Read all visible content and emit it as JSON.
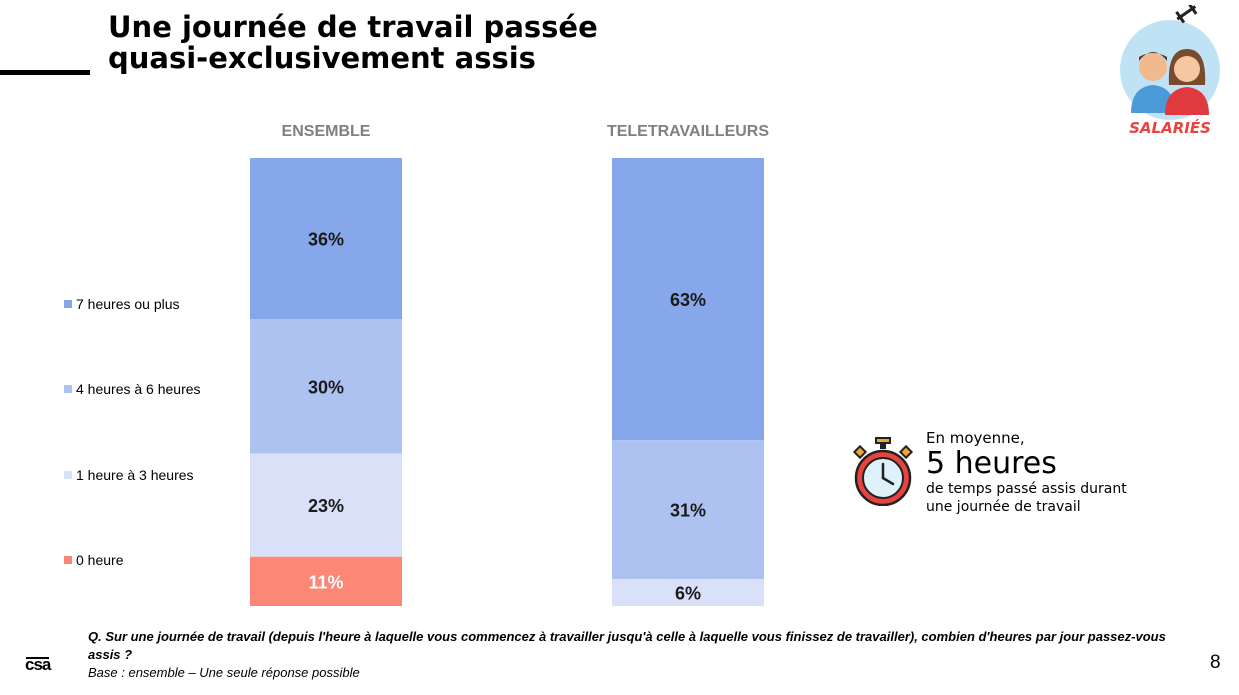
{
  "header": {
    "title_line1": "Une journée de travail passée",
    "title_line2": "quasi-exclusivement assis",
    "badge_label": "SALARIÉS"
  },
  "colors": {
    "7h_plus": "#86a8ea",
    "4h_6h": "#aec2f1",
    "1h_3h": "#d8e1f8",
    "0h": "#fb8776",
    "value_dark": "#1a1a1a",
    "value_light": "#ffffff"
  },
  "chart_data": {
    "type": "bar",
    "stacked": true,
    "normalized": true,
    "categories": [
      "ENSEMBLE",
      "TELETRAVAILLEURS"
    ],
    "series": [
      {
        "name": "7 heures ou plus",
        "values": [
          36,
          63
        ],
        "labels": [
          "36%",
          "63%"
        ]
      },
      {
        "name": "4 heures à 6 heures",
        "values": [
          30,
          31
        ],
        "labels": [
          "30%",
          "31%"
        ]
      },
      {
        "name": "1 heure à 3 heures",
        "values": [
          23,
          6
        ],
        "labels": [
          "23%",
          "6%"
        ]
      },
      {
        "name": "0 heure",
        "values": [
          11,
          0
        ],
        "labels": [
          "11%",
          ""
        ]
      }
    ],
    "legend_position": "left",
    "ylim": [
      0,
      100
    ]
  },
  "average": {
    "line1": "En moyenne,",
    "value": "5 heures",
    "line3": "de temps passé assis durant",
    "line4": "une journée de travail"
  },
  "footer": {
    "question": "Q. Sur une journée de travail (depuis l'heure à laquelle vous commencez à travailler jusqu'à celle à laquelle vous finissez de travailler), combien d'heures par jour passez-vous assis ?",
    "base": "Base : ensemble – Une seule réponse possible"
  },
  "logo_text": "csa",
  "page_number": "8"
}
